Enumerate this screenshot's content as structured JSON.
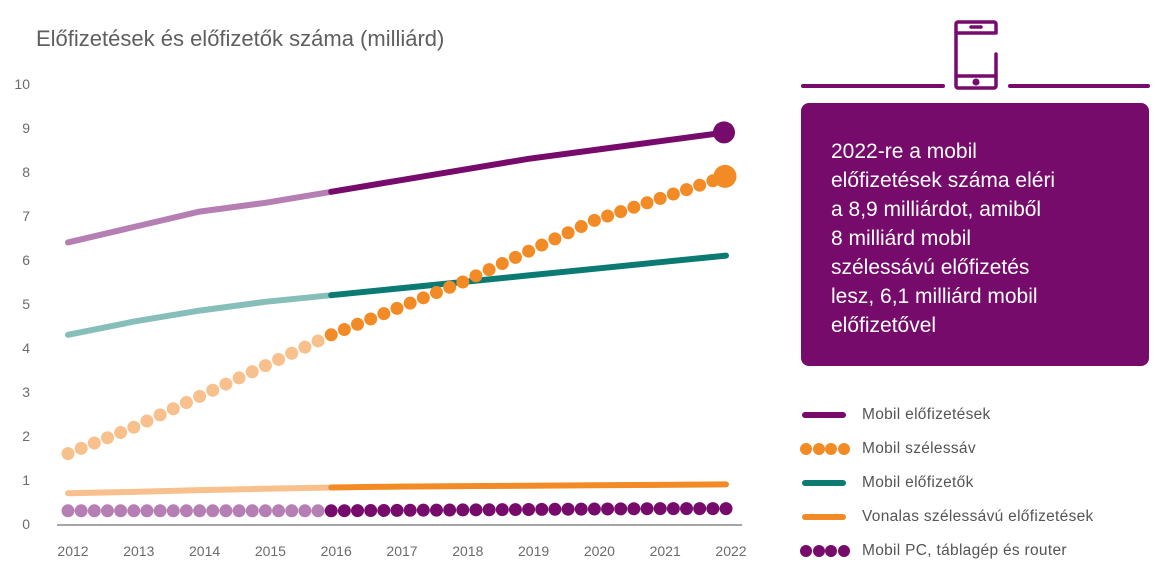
{
  "title": "Előfizetések és előfizetők száma (milliárd)",
  "callout": {
    "icon": "smartphone-icon",
    "lines": [
      "2022-re a mobil",
      "előfizetések száma eléri",
      "a 8,9 milliárdot, amiből",
      "8 milliárd mobil",
      "szélessávú előfizetés",
      "lesz, 6,1 milliárd mobil",
      "előfizetővel"
    ]
  },
  "colors": {
    "purple": "#770b6b",
    "purple_light": "#b57fb3",
    "orange": "#f28b26",
    "orange_light": "#f8c08d",
    "teal": "#0b7a72",
    "teal_light": "#86beba",
    "axis": "#a6a6a6",
    "text": "#5f5f5f"
  },
  "chart_data": {
    "type": "line",
    "title": "Előfizetések és előfizetők száma (milliárd)",
    "xlabel": "",
    "ylabel": "",
    "x": [
      2012,
      2013,
      2014,
      2015,
      2016,
      2017,
      2018,
      2019,
      2020,
      2021,
      2022
    ],
    "x_ticks": [
      "2012",
      "2013",
      "2014",
      "2015",
      "2016",
      "2017",
      "2018",
      "2019",
      "2020",
      "2021",
      "2022"
    ],
    "y_ticks": [
      "0",
      "1",
      "2",
      "3",
      "4",
      "5",
      "6",
      "7",
      "8",
      "9",
      "10"
    ],
    "ylim": [
      0,
      10
    ],
    "xlim": [
      2012,
      2022
    ],
    "grid": false,
    "forecast_start": 2016,
    "legend_position": "right",
    "series": [
      {
        "name": "Mobil előfizetések",
        "style": "line",
        "color": "#770b6b",
        "color_historic": "#b57fb3",
        "values": [
          6.4,
          6.75,
          7.1,
          7.3,
          7.55,
          7.8,
          8.05,
          8.3,
          8.5,
          8.7,
          8.9
        ],
        "end_marker": true
      },
      {
        "name": "Mobil szélessáv",
        "style": "dots",
        "color": "#f28b26",
        "color_historic": "#f8c08d",
        "values": [
          1.6,
          2.2,
          2.9,
          3.6,
          4.3,
          4.9,
          5.5,
          6.2,
          6.9,
          7.4,
          7.9
        ],
        "end_marker": true
      },
      {
        "name": "Mobil előfizetők",
        "style": "line",
        "color": "#0b7a72",
        "color_historic": "#86beba",
        "values": [
          4.3,
          4.6,
          4.85,
          5.05,
          5.2,
          5.35,
          5.5,
          5.65,
          5.8,
          5.95,
          6.1
        ],
        "end_marker": false
      },
      {
        "name": "Vonalas szélessávú előfizetések",
        "style": "line",
        "color": "#f28b26",
        "color_historic": "#f8c08d",
        "values": [
          0.7,
          0.73,
          0.77,
          0.8,
          0.83,
          0.85,
          0.86,
          0.87,
          0.88,
          0.89,
          0.9
        ],
        "end_marker": false
      },
      {
        "name": "Mobil PC, táblagép és router",
        "style": "dots",
        "color": "#770b6b",
        "color_historic": "#b57fb3",
        "values": [
          0.3,
          0.3,
          0.3,
          0.3,
          0.3,
          0.31,
          0.32,
          0.33,
          0.34,
          0.35,
          0.35
        ],
        "end_marker": false
      }
    ]
  },
  "legend": [
    {
      "label": "Mobil előfizetések",
      "swatch": "line",
      "color": "#770b6b"
    },
    {
      "label": "Mobil szélessáv",
      "swatch": "dots",
      "color": "#f28b26"
    },
    {
      "label": "Mobil előfizetők",
      "swatch": "line",
      "color": "#0b7a72"
    },
    {
      "label": "Vonalas szélessávú előfizetések",
      "swatch": "line",
      "color": "#f28b26"
    },
    {
      "label": "Mobil PC, táblagép és router",
      "swatch": "dots",
      "color": "#770b6b"
    }
  ]
}
